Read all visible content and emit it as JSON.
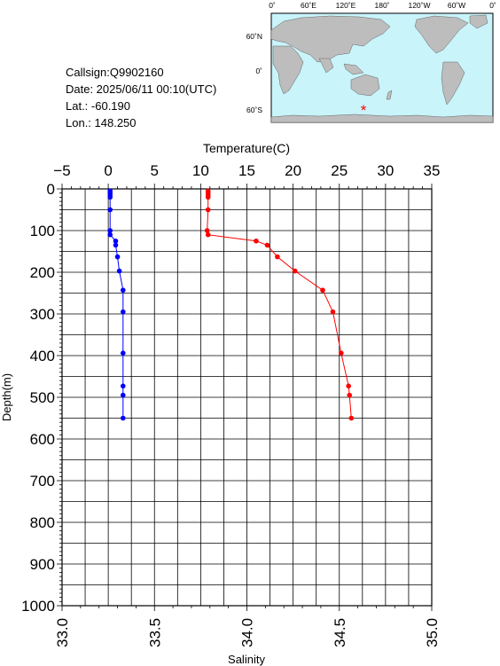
{
  "info": {
    "callsign": "Callsign:Q9902160",
    "date": "Date:  2025/06/11 00:10(UTC)",
    "lat": "Lat.:  -60.190",
    "lon": "Lon.:  148.250"
  },
  "map": {
    "top_labels": [
      "0˚",
      "60˚E",
      "120˚E",
      "180˚",
      "120˚W",
      "60˚W",
      "0˚"
    ],
    "left_labels": [
      "60˚N",
      "0˚",
      "60˚S"
    ],
    "ocean_color": "#c8f4fa",
    "land_color": "#bdbdbd",
    "marker_color": "#ff0000",
    "marker_symbol": "*"
  },
  "chart_data": {
    "type": "line",
    "xlabel_top": "Temperature(C)",
    "xlabel_bottom": "Salinity",
    "ylabel": "Depth(m)",
    "temperature_axis": [
      -5,
      35
    ],
    "salinity_axis": [
      33.0,
      35.0
    ],
    "depth_axis": [
      0,
      1000
    ],
    "temperature_ticks": [
      "−5",
      "0",
      "5",
      "10",
      "15",
      "20",
      "25",
      "30",
      "35"
    ],
    "salinity_ticks": [
      "33.0",
      "33.5",
      "34.0",
      "34.5",
      "35.0"
    ],
    "depth_ticks": [
      "0",
      "100",
      "200",
      "300",
      "400",
      "500",
      "600",
      "700",
      "800",
      "900",
      "1000"
    ],
    "grid": true,
    "series": [
      {
        "color": "#ff0000",
        "axis": "temperature",
        "points": [
          [
            10.8,
            5
          ],
          [
            10.8,
            10
          ],
          [
            10.8,
            15
          ],
          [
            10.8,
            20
          ],
          [
            10.8,
            50
          ],
          [
            10.7,
            100
          ],
          [
            10.8,
            110
          ],
          [
            16.0,
            125
          ],
          [
            17.2,
            135
          ],
          [
            18.3,
            163
          ],
          [
            20.2,
            197
          ],
          [
            23.2,
            243
          ],
          [
            24.3,
            295
          ],
          [
            25.2,
            394
          ],
          [
            26.0,
            473
          ],
          [
            26.1,
            495
          ],
          [
            26.3,
            550
          ]
        ]
      },
      {
        "color": "#0000ff",
        "axis": "salinity",
        "points": [
          [
            33.26,
            5
          ],
          [
            33.26,
            10
          ],
          [
            33.26,
            15
          ],
          [
            33.26,
            20
          ],
          [
            33.26,
            50
          ],
          [
            33.26,
            100
          ],
          [
            33.26,
            110
          ],
          [
            33.29,
            125
          ],
          [
            33.29,
            135
          ],
          [
            33.3,
            163
          ],
          [
            33.31,
            197
          ],
          [
            33.33,
            243
          ],
          [
            33.33,
            295
          ],
          [
            33.33,
            394
          ],
          [
            33.33,
            473
          ],
          [
            33.33,
            495
          ],
          [
            33.33,
            550
          ]
        ]
      }
    ]
  }
}
